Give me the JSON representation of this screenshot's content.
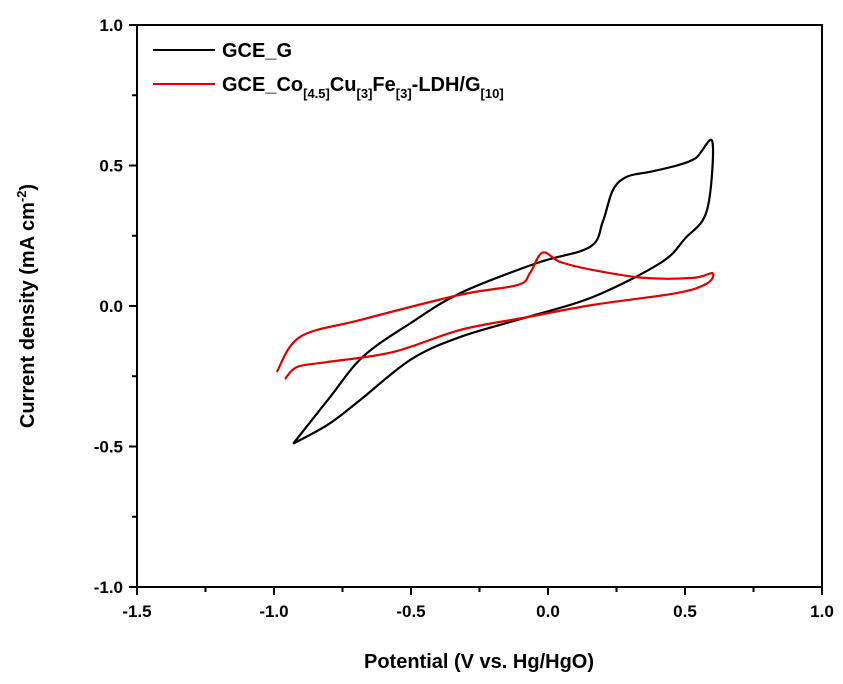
{
  "chart_data": {
    "type": "line",
    "title": "",
    "xlabel": "Potential (V vs. Hg/HgO)",
    "ylabel": "Current density (mA cm",
    "ylabel_sup": "-2",
    "ylabel_end": ")",
    "xlim": [
      -1.5,
      1.0
    ],
    "ylim": [
      -1.0,
      1.0
    ],
    "xticks": [
      -1.5,
      -1.0,
      -0.5,
      0.0,
      0.5,
      1.0
    ],
    "xtick_labels": [
      "-1.5",
      "-1.0",
      "-0.5",
      "0.0",
      "0.5",
      "1.0"
    ],
    "yticks": [
      -1.0,
      -0.5,
      0.0,
      0.5,
      1.0
    ],
    "ytick_labels": [
      "-1.0",
      "-0.5",
      "0.0",
      "0.5",
      "1.0"
    ],
    "grid": false,
    "legend_position": "top-left",
    "series": [
      {
        "name": "GCE_G",
        "color": "#000000",
        "points": [
          [
            -0.93,
            -0.49
          ],
          [
            -0.8,
            -0.33
          ],
          [
            -0.675,
            -0.18
          ],
          [
            -0.5,
            -0.06
          ],
          [
            -0.32,
            0.046
          ],
          [
            -0.04,
            0.153
          ],
          [
            0.153,
            0.21
          ],
          [
            0.2,
            0.3
          ],
          [
            0.237,
            0.413
          ],
          [
            0.288,
            0.46
          ],
          [
            0.37,
            0.477
          ],
          [
            0.47,
            0.5
          ],
          [
            0.54,
            0.527
          ],
          [
            0.6,
            0.584
          ],
          [
            0.58,
            0.34
          ],
          [
            0.5,
            0.24
          ],
          [
            0.41,
            0.153
          ],
          [
            0.164,
            0.032
          ],
          [
            -0.077,
            -0.04
          ],
          [
            -0.32,
            -0.11
          ],
          [
            -0.5,
            -0.19
          ],
          [
            -0.686,
            -0.335
          ],
          [
            -0.8,
            -0.42
          ],
          [
            -0.93,
            -0.49
          ]
        ]
      },
      {
        "name": "GCE_Co[4.5]Cu[3]Fe[3]-LDH/G[10]",
        "legend_parts": [
          [
            "GCE_Co",
            ""
          ],
          [
            "[4.5]",
            "sub"
          ],
          [
            "Cu",
            ""
          ],
          [
            "[3]",
            "sub"
          ],
          [
            "Fe",
            ""
          ],
          [
            "[3]",
            "sub"
          ],
          [
            "-LDH/G",
            ""
          ],
          [
            "[10]",
            "sub"
          ]
        ],
        "color": "#e00000",
        "points": [
          [
            -0.99,
            -0.235
          ],
          [
            -0.905,
            -0.11
          ],
          [
            -0.686,
            -0.05
          ],
          [
            -0.32,
            0.04
          ],
          [
            -0.11,
            0.075
          ],
          [
            -0.066,
            0.117
          ],
          [
            -0.02,
            0.19
          ],
          [
            0.044,
            0.157
          ],
          [
            0.164,
            0.128
          ],
          [
            0.35,
            0.1
          ],
          [
            0.53,
            0.1
          ],
          [
            0.6,
            0.117
          ],
          [
            0.58,
            0.08
          ],
          [
            0.47,
            0.046
          ],
          [
            0.164,
            0.004
          ],
          [
            -0.077,
            -0.04
          ],
          [
            -0.32,
            -0.085
          ],
          [
            -0.566,
            -0.164
          ],
          [
            -0.81,
            -0.2
          ],
          [
            -0.916,
            -0.217
          ],
          [
            -0.96,
            -0.26
          ]
        ]
      }
    ]
  }
}
